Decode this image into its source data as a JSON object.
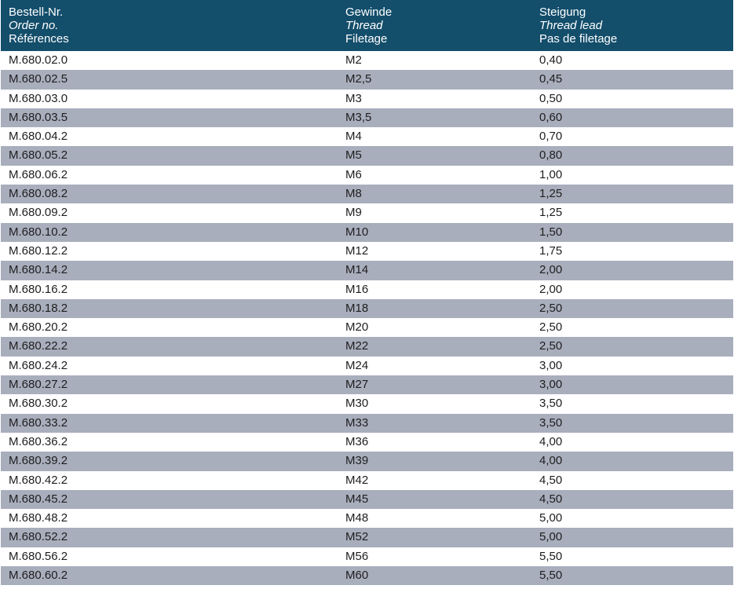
{
  "header": {
    "col1": [
      "Bestell-Nr.",
      "Order no.",
      "Références"
    ],
    "col2": [
      "Gewinde",
      "Thread",
      "Filetage"
    ],
    "col3": [
      "Steigung",
      "Thread lead",
      "Pas de filetage"
    ]
  },
  "rows": [
    [
      "M.680.02.0",
      "M2",
      "0,40"
    ],
    [
      "M.680.02.5",
      "M2,5",
      "0,45"
    ],
    [
      "M.680.03.0",
      "M3",
      "0,50"
    ],
    [
      "M.680.03.5",
      "M3,5",
      "0,60"
    ],
    [
      "M.680.04.2",
      "M4",
      "0,70"
    ],
    [
      "M.680.05.2",
      "M5",
      "0,80"
    ],
    [
      "M.680.06.2",
      "M6",
      "1,00"
    ],
    [
      "M.680.08.2",
      "M8",
      "1,25"
    ],
    [
      "M.680.09.2",
      "M9",
      "1,25"
    ],
    [
      "M.680.10.2",
      "M10",
      "1,50"
    ],
    [
      "M.680.12.2",
      "M12",
      "1,75"
    ],
    [
      "M.680.14.2",
      "M14",
      "2,00"
    ],
    [
      "M.680.16.2",
      "M16",
      "2,00"
    ],
    [
      "M.680.18.2",
      "M18",
      "2,50"
    ],
    [
      "M.680.20.2",
      "M20",
      "2,50"
    ],
    [
      "M.680.22.2",
      "M22",
      "2,50"
    ],
    [
      "M.680.24.2",
      "M24",
      "3,00"
    ],
    [
      "M.680.27.2",
      "M27",
      "3,00"
    ],
    [
      "M.680.30.2",
      "M30",
      "3,50"
    ],
    [
      "M.680.33.2",
      "M33",
      "3,50"
    ],
    [
      "M.680.36.2",
      "M36",
      "4,00"
    ],
    [
      "M.680.39.2",
      "M39",
      "4,00"
    ],
    [
      "M.680.42.2",
      "M42",
      "4,50"
    ],
    [
      "M.680.45.2",
      "M45",
      "4,50"
    ],
    [
      "M.680.48.2",
      "M48",
      "5,00"
    ],
    [
      "M.680.52.2",
      "M52",
      "5,00"
    ],
    [
      "M.680.56.2",
      "M56",
      "5,50"
    ],
    [
      "M.680.60.2",
      "M60",
      "5,50"
    ]
  ],
  "colors": {
    "header_bg": "#134e6b",
    "stripe": "#a9aebd"
  }
}
